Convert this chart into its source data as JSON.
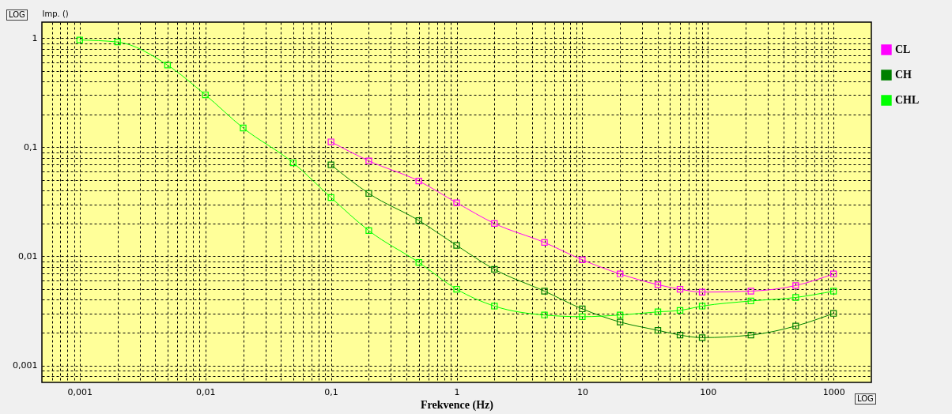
{
  "chart_data": {
    "type": "line",
    "xlabel": "Frekvence (Hz)",
    "ylabel": "Imp. ()",
    "annotations": [
      "LOG",
      "LOG"
    ],
    "log": "xy",
    "grid": true,
    "legend": "right",
    "marker": "square",
    "line_style": "solid",
    "x": [
      0.001,
      0.002,
      0.005,
      0.01,
      0.02,
      0.05,
      0.1,
      0.2,
      0.5,
      1,
      2,
      5,
      10,
      20,
      40,
      60,
      90,
      220,
      500,
      1000
    ],
    "xlim": [
      0.0005,
      2000
    ],
    "ylim": [
      0.0007,
      1.4
    ],
    "xticks": [
      {
        "value": 0.0006,
        "label": null
      },
      {
        "value": 0.0007,
        "label": null
      },
      {
        "value": 0.0008,
        "label": null
      },
      {
        "value": 0.0009,
        "label": null
      },
      {
        "value": 0.001,
        "label": "0,001"
      },
      {
        "value": 0.002,
        "label": null
      },
      {
        "value": 0.003,
        "label": null
      },
      {
        "value": 0.004,
        "label": null
      },
      {
        "value": 0.005,
        "label": null
      },
      {
        "value": 0.006,
        "label": null
      },
      {
        "value": 0.007,
        "label": null
      },
      {
        "value": 0.008,
        "label": null
      },
      {
        "value": 0.009,
        "label": null
      },
      {
        "value": 0.01,
        "label": "0,01"
      },
      {
        "value": 0.02,
        "label": null
      },
      {
        "value": 0.03,
        "label": null
      },
      {
        "value": 0.04,
        "label": null
      },
      {
        "value": 0.05,
        "label": null
      },
      {
        "value": 0.06,
        "label": null
      },
      {
        "value": 0.07,
        "label": null
      },
      {
        "value": 0.08,
        "label": null
      },
      {
        "value": 0.09,
        "label": null
      },
      {
        "value": 0.1,
        "label": "0,1"
      },
      {
        "value": 0.2,
        "label": null
      },
      {
        "value": 0.3,
        "label": null
      },
      {
        "value": 0.4,
        "label": null
      },
      {
        "value": 0.5,
        "label": null
      },
      {
        "value": 0.6,
        "label": null
      },
      {
        "value": 0.7,
        "label": null
      },
      {
        "value": 0.8,
        "label": null
      },
      {
        "value": 0.9,
        "label": null
      },
      1,
      {
        "value": 2,
        "label": null
      },
      {
        "value": 3,
        "label": null
      },
      {
        "value": 4,
        "label": null
      },
      {
        "value": 5,
        "label": null
      },
      {
        "value": 6,
        "label": null
      },
      {
        "value": 7,
        "label": null
      },
      {
        "value": 8,
        "label": null
      },
      {
        "value": 9,
        "label": null
      },
      10,
      {
        "value": 20,
        "label": null
      },
      {
        "value": 30,
        "label": null
      },
      {
        "value": 40,
        "label": null
      },
      {
        "value": 50,
        "label": null
      },
      {
        "value": 60,
        "label": null
      },
      {
        "value": 70,
        "label": null
      },
      {
        "value": 80,
        "label": null
      },
      {
        "value": 90,
        "label": null
      },
      100,
      {
        "value": 200,
        "label": null
      },
      {
        "value": 300,
        "label": null
      },
      {
        "value": 400,
        "label": null
      },
      {
        "value": 500,
        "label": null
      },
      {
        "value": 600,
        "label": null
      },
      {
        "value": 700,
        "label": null
      },
      {
        "value": 800,
        "label": null
      },
      {
        "value": 900,
        "label": null
      },
      1000
    ],
    "yticks": [
      {
        "value": 0.0008,
        "label": null
      },
      {
        "value": 0.0009,
        "label": null
      },
      {
        "value": 0.001,
        "label": "0,001"
      },
      {
        "value": 0.002,
        "label": null
      },
      {
        "value": 0.003,
        "label": null
      },
      {
        "value": 0.004,
        "label": null
      },
      {
        "value": 0.005,
        "label": null
      },
      {
        "value": 0.006,
        "label": null
      },
      {
        "value": 0.007,
        "label": null
      },
      {
        "value": 0.008,
        "label": null
      },
      {
        "value": 0.009,
        "label": null
      },
      {
        "value": 0.01,
        "label": "0,01"
      },
      {
        "value": 0.02,
        "label": null
      },
      {
        "value": 0.03,
        "label": null
      },
      {
        "value": 0.04,
        "label": null
      },
      {
        "value": 0.05,
        "label": null
      },
      {
        "value": 0.06,
        "label": null
      },
      {
        "value": 0.07,
        "label": null
      },
      {
        "value": 0.08,
        "label": null
      },
      {
        "value": 0.09,
        "label": null
      },
      {
        "value": 0.1,
        "label": "0,1"
      },
      {
        "value": 0.2,
        "label": null
      },
      {
        "value": 0.3,
        "label": null
      },
      {
        "value": 0.4,
        "label": null
      },
      {
        "value": 0.5,
        "label": null
      },
      {
        "value": 0.6,
        "label": null
      },
      {
        "value": 0.7,
        "label": null
      },
      {
        "value": 0.8,
        "label": null
      },
      {
        "value": 0.9,
        "label": null
      },
      1
    ],
    "series": [
      {
        "name": "CL",
        "color": "#ff00ff",
        "values": [
          null,
          null,
          null,
          null,
          null,
          null,
          0.112,
          0.075,
          0.049,
          0.031,
          0.02,
          0.0134,
          0.0093,
          0.0069,
          0.0055,
          0.005,
          0.0047,
          0.0048,
          0.0054,
          0.0069
        ]
      },
      {
        "name": "CH",
        "color": "#008000",
        "values": [
          null,
          null,
          null,
          null,
          null,
          null,
          0.069,
          0.0377,
          0.0213,
          0.0126,
          0.0076,
          0.0048,
          0.0033,
          0.0025,
          0.0021,
          0.0019,
          0.0018,
          0.0019,
          0.0023,
          0.003
        ]
      },
      {
        "name": "CHL",
        "color": "#00ff00",
        "values": [
          0.96,
          0.92,
          0.565,
          0.302,
          0.15,
          0.072,
          0.0346,
          0.0172,
          0.0088,
          0.005,
          0.0035,
          0.0029,
          0.0028,
          0.0029,
          0.0031,
          0.0032,
          0.0035,
          0.0039,
          0.0042,
          0.0048
        ]
      }
    ]
  }
}
